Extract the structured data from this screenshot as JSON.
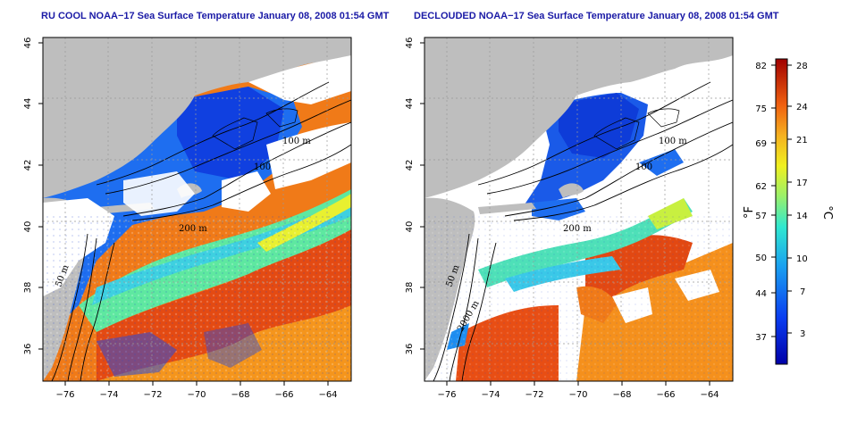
{
  "panels": [
    {
      "title": "RU COOL NOAA−17 Sea Surface Temperature January 08, 2008 01:54 GMT",
      "contour_labels": [
        "100 m",
        "100",
        "200 m",
        "50 m",
        "2000 m"
      ]
    },
    {
      "title": "DECLOUDED NOAA−17 Sea Surface Temperature January 08, 2008 01:54 GMT",
      "contour_labels": [
        "100 m",
        "100",
        "200 m",
        "50 m",
        "2000 m"
      ]
    }
  ],
  "axes": {
    "lon_ticks": [
      "−76",
      "−74",
      "−72",
      "−70",
      "−68",
      "−66",
      "−64"
    ],
    "lat_ticks": [
      "46",
      "44",
      "42",
      "40",
      "38",
      "36"
    ]
  },
  "colorbar": {
    "fahrenheit_ticks": [
      "82",
      "75",
      "69",
      "62",
      "57",
      "50",
      "44",
      "37"
    ],
    "celsius_ticks": [
      "28",
      "24",
      "21",
      "17",
      "14",
      "10",
      "7",
      "3"
    ],
    "fahrenheit_unit": "°F",
    "celsius_unit": "°C"
  },
  "colors": {
    "land": "#bebebe",
    "cloud": "#ffffff",
    "title": "#1a1aa6"
  }
}
